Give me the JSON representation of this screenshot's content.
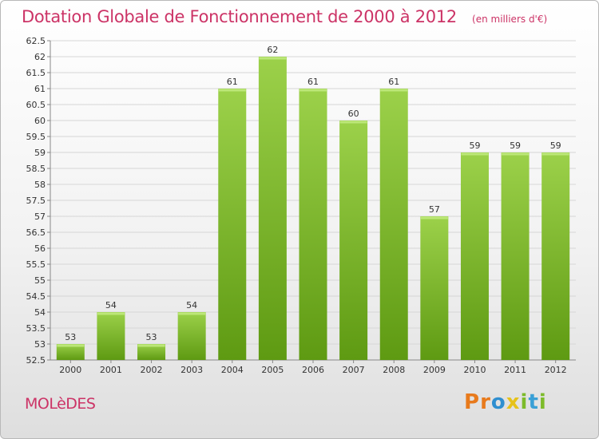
{
  "header": {
    "title": "Dotation Globale de Fonctionnement de 2000 à 2012",
    "subtitle": "(en milliers d'€)"
  },
  "footer": {
    "commune": "MOLèDES",
    "brand_letters": [
      "P",
      "r",
      "o",
      "x",
      "i",
      "t",
      "i"
    ],
    "brand_colors": [
      "#e87a1c",
      "#e87a1c",
      "#2f8fd0",
      "#e6c21a",
      "#7dbb2a",
      "#3aa0d6",
      "#7dbb2a"
    ]
  },
  "colors": {
    "bar_light": "#9cd14a",
    "bar_dark": "#5e9a12",
    "grid": "#d6d6d6",
    "accent": "#cc3366"
  },
  "chart_data": {
    "type": "bar",
    "categories": [
      "2000",
      "2001",
      "2002",
      "2003",
      "2004",
      "2005",
      "2006",
      "2007",
      "2008",
      "2009",
      "2010",
      "2011",
      "2012"
    ],
    "values": [
      53,
      54,
      53,
      54,
      61,
      62,
      61,
      60,
      61,
      57,
      59,
      59,
      59
    ],
    "ylim": [
      52.5,
      62.5
    ],
    "yticks": [
      52.5,
      53,
      53.5,
      54,
      54.5,
      55,
      55.5,
      56,
      56.5,
      57,
      57.5,
      58,
      58.5,
      59,
      59.5,
      60,
      60.5,
      61,
      61.5,
      62,
      62.5
    ],
    "ytick_labels": [
      "52.5",
      "53",
      "53.5",
      "54",
      "54.5",
      "55",
      "55.5",
      "56",
      "56.5",
      "57",
      "57.5",
      "58",
      "58.5",
      "59",
      "59.5",
      "60",
      "60.5",
      "61",
      "61.5",
      "62",
      "62.5"
    ],
    "grid": true
  }
}
